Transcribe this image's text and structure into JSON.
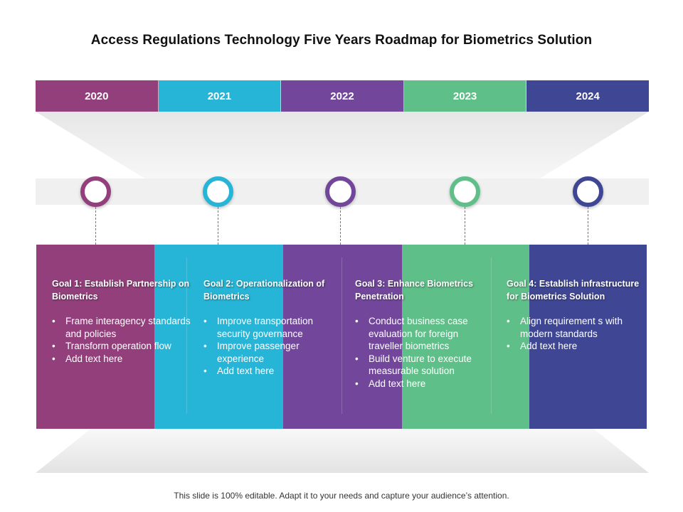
{
  "title": "Access Regulations Technology Five Years Roadmap for Biometrics Solution",
  "colors": {
    "y2020": "#923f7b",
    "y2021": "#26b5d6",
    "y2022": "#72479b",
    "y2023": "#5fbf88",
    "y2024": "#3f4795"
  },
  "years": [
    "2020",
    "2021",
    "2022",
    "2023",
    "2024"
  ],
  "goals": [
    {
      "title": "Goal 1: Establish Partnership on Biometrics",
      "bullets": [
        "Frame interagency standards and policies",
        "Transform operation flow",
        "Add text here"
      ]
    },
    {
      "title": "Goal 2: Operationalization of Biometrics",
      "bullets": [
        "Improve transportation security governance",
        "Improve passenger experience",
        "Add text here"
      ]
    },
    {
      "title": "Goal 3: Enhance Biometrics Penetration",
      "bullets": [
        "Conduct business case evaluation for foreign traveller biometrics",
        "Build venture to execute measurable solution",
        "Add text here"
      ]
    },
    {
      "title": "Goal 4: Establish infrastructure for Biometrics Solution",
      "bullets": [
        "Align requirement s with modern standards",
        "Add text here"
      ]
    }
  ],
  "footer": "This slide is 100% editable. Adapt it to your needs and capture your audience’s attention."
}
